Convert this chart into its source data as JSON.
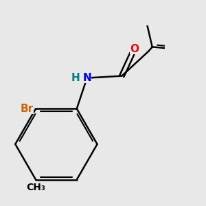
{
  "background_color": "#e8e8e8",
  "bond_color": "#000000",
  "bond_width": 1.8,
  "atom_labels": {
    "S": {
      "color": "#cccc00",
      "fontsize": 11,
      "fontweight": "bold"
    },
    "O": {
      "color": "#ff0000",
      "fontsize": 11,
      "fontweight": "bold"
    },
    "N": {
      "color": "#0000ff",
      "fontsize": 11,
      "fontweight": "bold"
    },
    "H": {
      "color": "#008080",
      "fontsize": 11,
      "fontweight": "bold"
    },
    "Br": {
      "color": "#cc6600",
      "fontsize": 11,
      "fontweight": "bold"
    },
    "CH3": {
      "color": "#000000",
      "fontsize": 10,
      "fontweight": "bold"
    }
  },
  "figsize": [
    3.0,
    3.0
  ],
  "dpi": 100
}
